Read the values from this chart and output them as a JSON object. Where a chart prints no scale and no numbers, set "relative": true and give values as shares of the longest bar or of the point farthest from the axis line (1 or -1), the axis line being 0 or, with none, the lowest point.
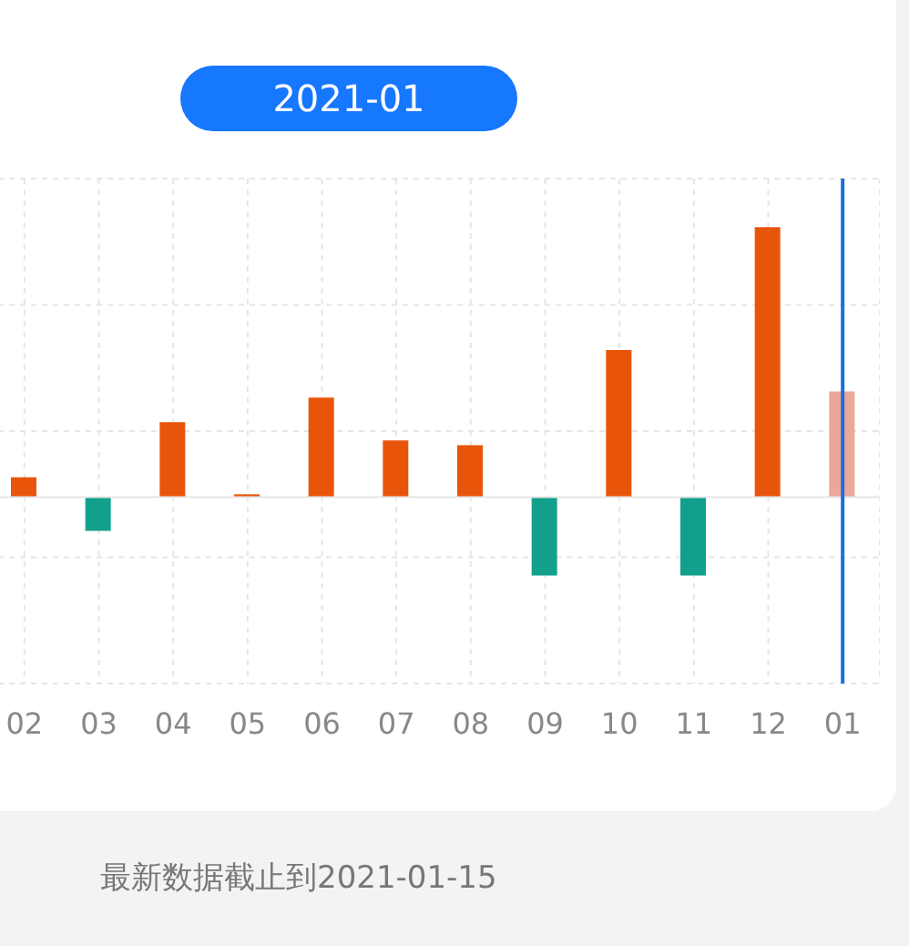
{
  "chart_data": {
    "type": "bar",
    "relative": true,
    "categories": [
      "02",
      "03",
      "04",
      "05",
      "06",
      "07",
      "08",
      "09",
      "10",
      "11",
      "12",
      "01"
    ],
    "values": [
      0.074,
      -0.125,
      0.278,
      0.011,
      0.369,
      0.21,
      0.193,
      -0.29,
      0.545,
      -0.29,
      1,
      0.392
    ],
    "colors": [
      "#e8550a",
      "#12a08c",
      "#e8550a",
      "#e8550a",
      "#e8550a",
      "#e8550a",
      "#e8550a",
      "#12a08c",
      "#e8550a",
      "#12a08c",
      "#e8550a",
      "#eba898"
    ],
    "ref_lines": [
      {
        "axis": "x",
        "value": "01",
        "color": "#1a6fe0"
      }
    ],
    "annotations": [
      "2021-01",
      "最新数据截止到2021-01-15"
    ],
    "grid": true
  }
}
